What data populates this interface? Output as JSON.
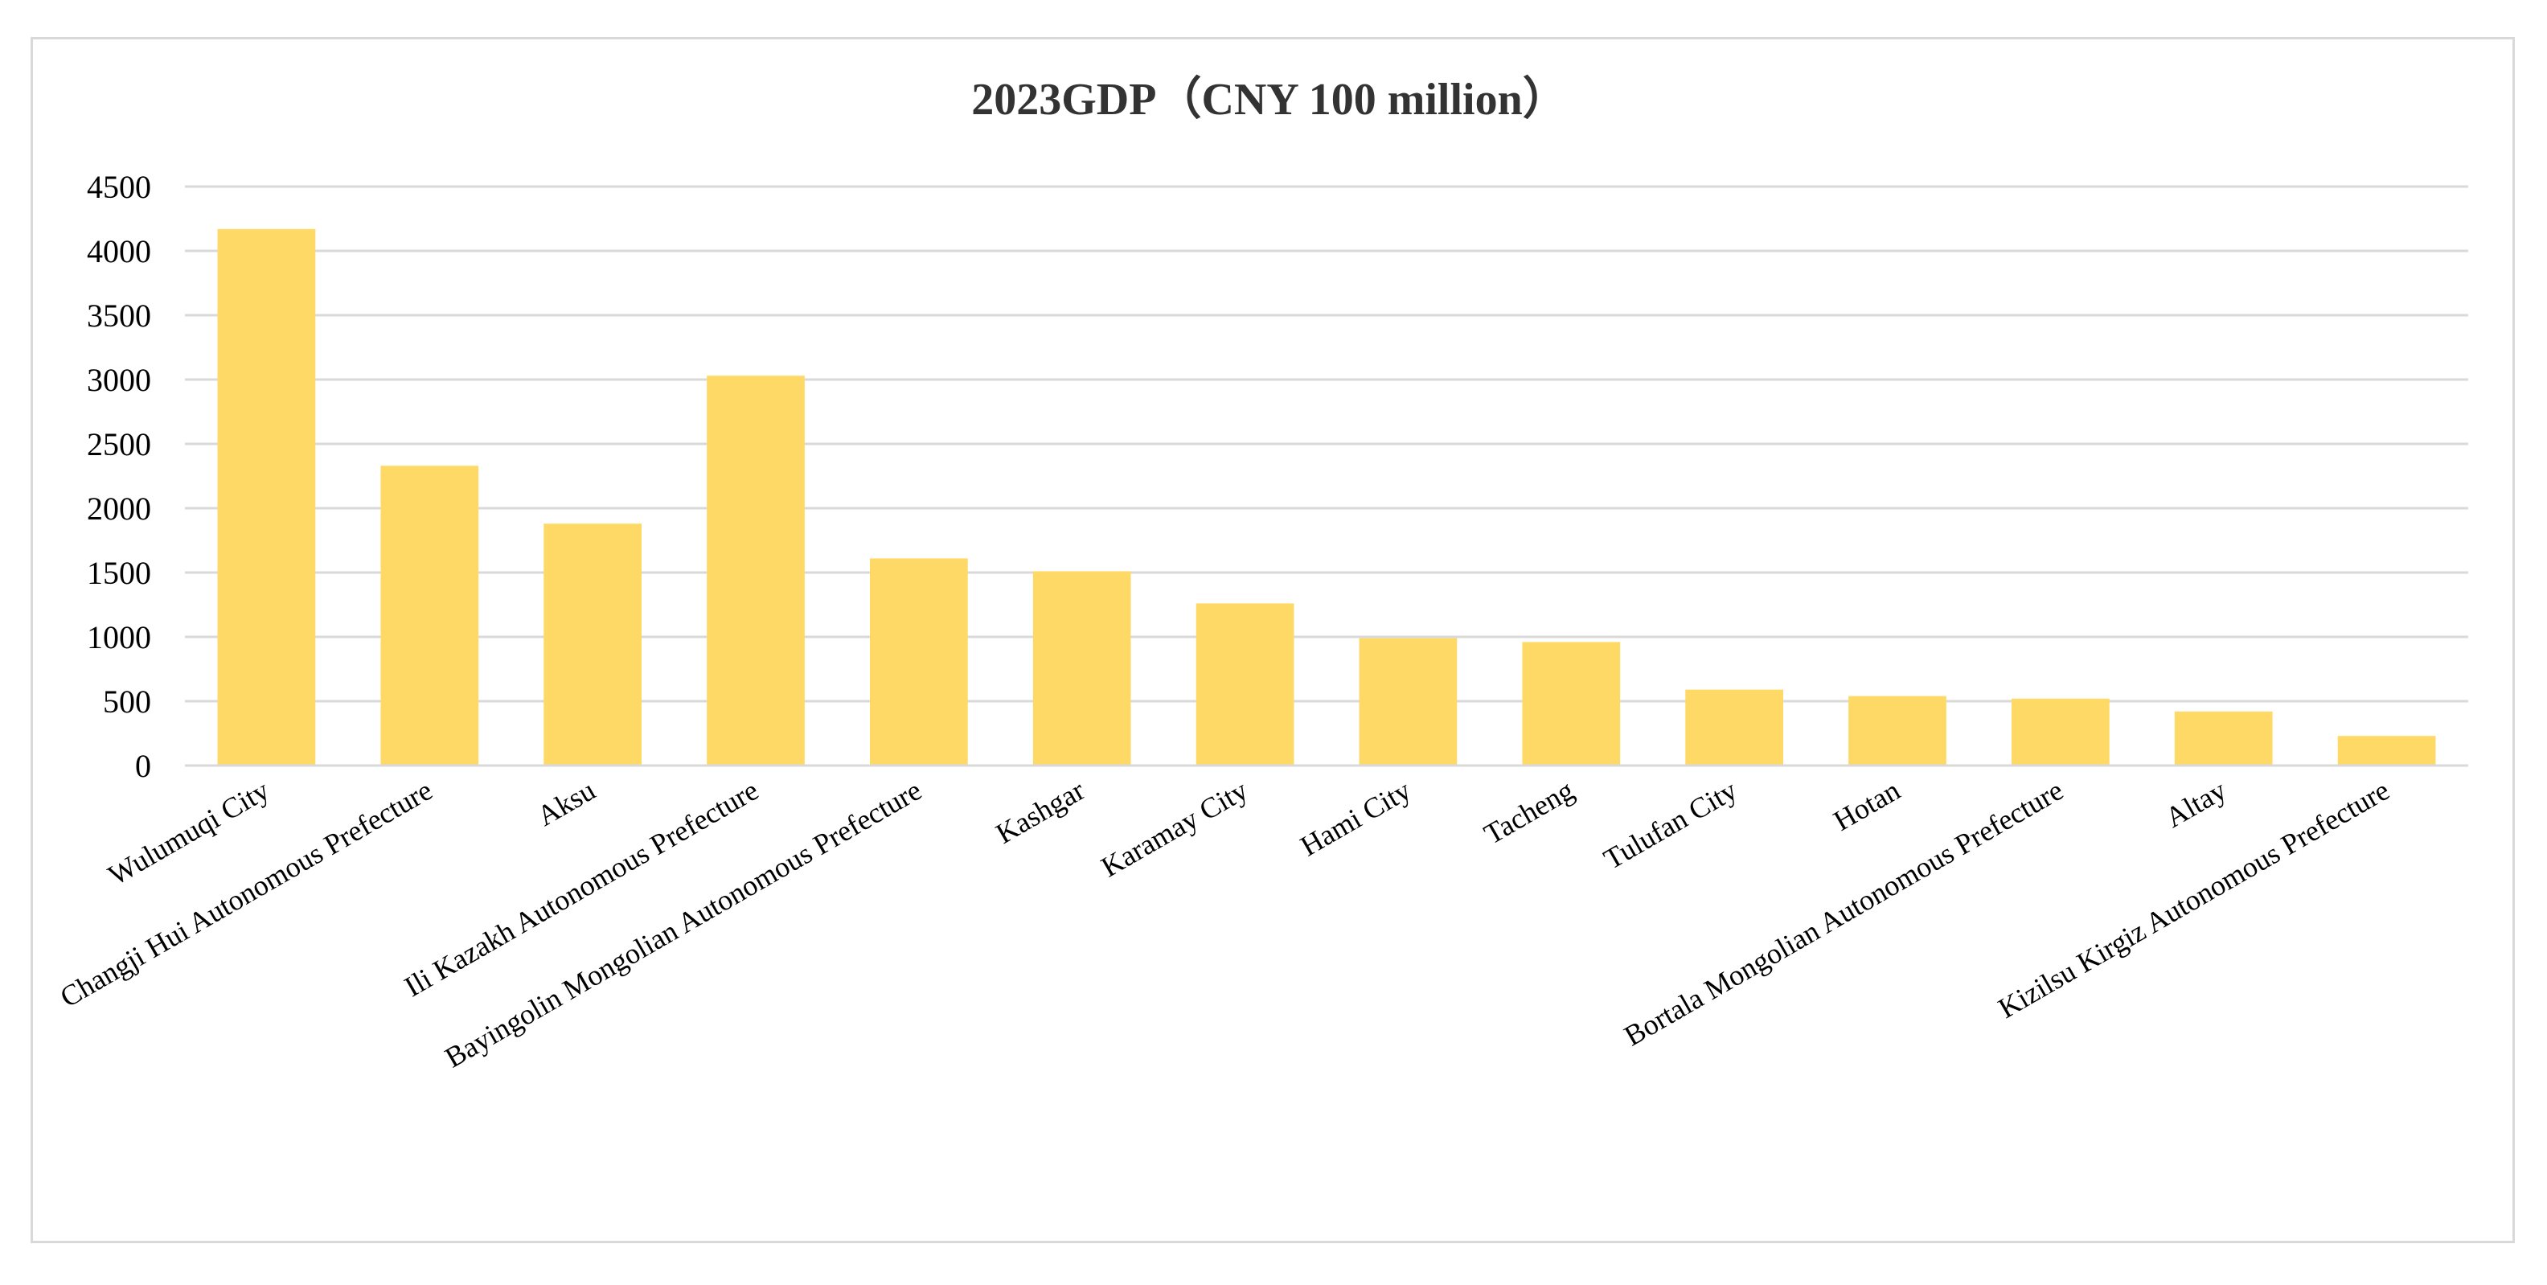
{
  "chart_data": {
    "type": "bar",
    "title": "2023GDP（CNY 100 million）",
    "xlabel": "",
    "ylabel": "",
    "ylim": [
      0,
      4500
    ],
    "yticks": [
      0,
      500,
      1000,
      1500,
      2000,
      2500,
      3000,
      3500,
      4000,
      4500
    ],
    "grid": true,
    "legend": "none",
    "bar_color": "#FFD966",
    "grid_color": "#d9d9d9",
    "categories": [
      "Wulumuqi City",
      "Changji Hui Autonomous Prefecture",
      "Aksu",
      "Ili Kazakh Autonomous Prefecture",
      "Bayingolin Mongolian Autonomous Prefecture",
      "Kashgar",
      "Karamay City",
      "Hami City",
      "Tacheng",
      "Tulufan City",
      "Hotan",
      "Bortala Mongolian Autonomous Prefecture",
      "Altay",
      "Kizilsu Kirgiz Autonomous Prefecture"
    ],
    "values": [
      4170,
      2330,
      1880,
      3030,
      1610,
      1510,
      1260,
      990,
      960,
      590,
      540,
      520,
      420,
      230
    ]
  }
}
